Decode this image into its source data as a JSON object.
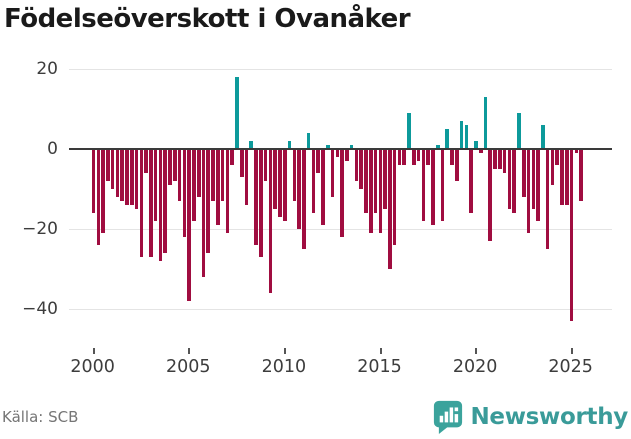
{
  "title": "Födelseöverskott i Ovanåker",
  "source": "Källa: SCB",
  "brand": {
    "name": "Newsworthy",
    "icon": "newsworthy-speech-bubble-bars-icon",
    "icon_bg_color": "#3ba39c",
    "text_color": "#3a9b99"
  },
  "chart_data": {
    "type": "bar",
    "title": "Födelseöverskott i Ovanåker",
    "frequency": "quarterly",
    "x_start": "2000-Q1",
    "x_end": "2025-Q3",
    "xlabel": "",
    "ylabel": "",
    "ylim": [
      -45,
      22
    ],
    "y_ticks": [
      20,
      0,
      -20,
      -40
    ],
    "y_tick_labels": [
      "20",
      "0",
      "−20",
      "−40"
    ],
    "x_ticks": [
      2000,
      2005,
      2010,
      2015,
      2020,
      2025
    ],
    "grid": "horizontal",
    "legend": "none",
    "positive_color": "#0d9a9b",
    "negative_color": "#a00d40",
    "values_by_year": {
      "2000": [
        -16,
        -24,
        -21,
        -8
      ],
      "2001": [
        -10,
        -12,
        -13,
        -14
      ],
      "2002": [
        -14,
        -15,
        -27,
        -6
      ],
      "2003": [
        -27,
        -18,
        -28,
        -26
      ],
      "2004": [
        -9,
        -8,
        -13,
        -22
      ],
      "2005": [
        -38,
        -18,
        -12,
        -32
      ],
      "2006": [
        -26,
        -13,
        -19,
        -13
      ],
      "2007": [
        -21,
        -4,
        18,
        -7
      ],
      "2008": [
        -14,
        2,
        -24,
        -27
      ],
      "2009": [
        -8,
        -36,
        -15,
        -17
      ],
      "2010": [
        -18,
        2,
        -13,
        -20
      ],
      "2011": [
        -25,
        4,
        -16,
        -6
      ],
      "2012": [
        -19,
        1,
        -12,
        -2
      ],
      "2013": [
        -22,
        -3,
        1,
        -8
      ],
      "2014": [
        -10,
        -16,
        -21,
        -16
      ],
      "2015": [
        -21,
        -15,
        -30,
        -24
      ],
      "2016": [
        -4,
        -4,
        9,
        -4
      ],
      "2017": [
        -3,
        -18,
        -4,
        -19
      ],
      "2018": [
        1,
        -18,
        5,
        -4
      ],
      "2019": [
        -8,
        7,
        6,
        -16
      ],
      "2020": [
        2,
        -1,
        13,
        -23
      ],
      "2021": [
        -5,
        -5,
        -6,
        -15
      ],
      "2022": [
        -16,
        9,
        -12,
        -21
      ],
      "2023": [
        -15,
        -18,
        6,
        -25
      ],
      "2024": [
        -9,
        -4,
        -14,
        -14
      ],
      "2025": [
        -43,
        -1,
        -13
      ]
    }
  }
}
